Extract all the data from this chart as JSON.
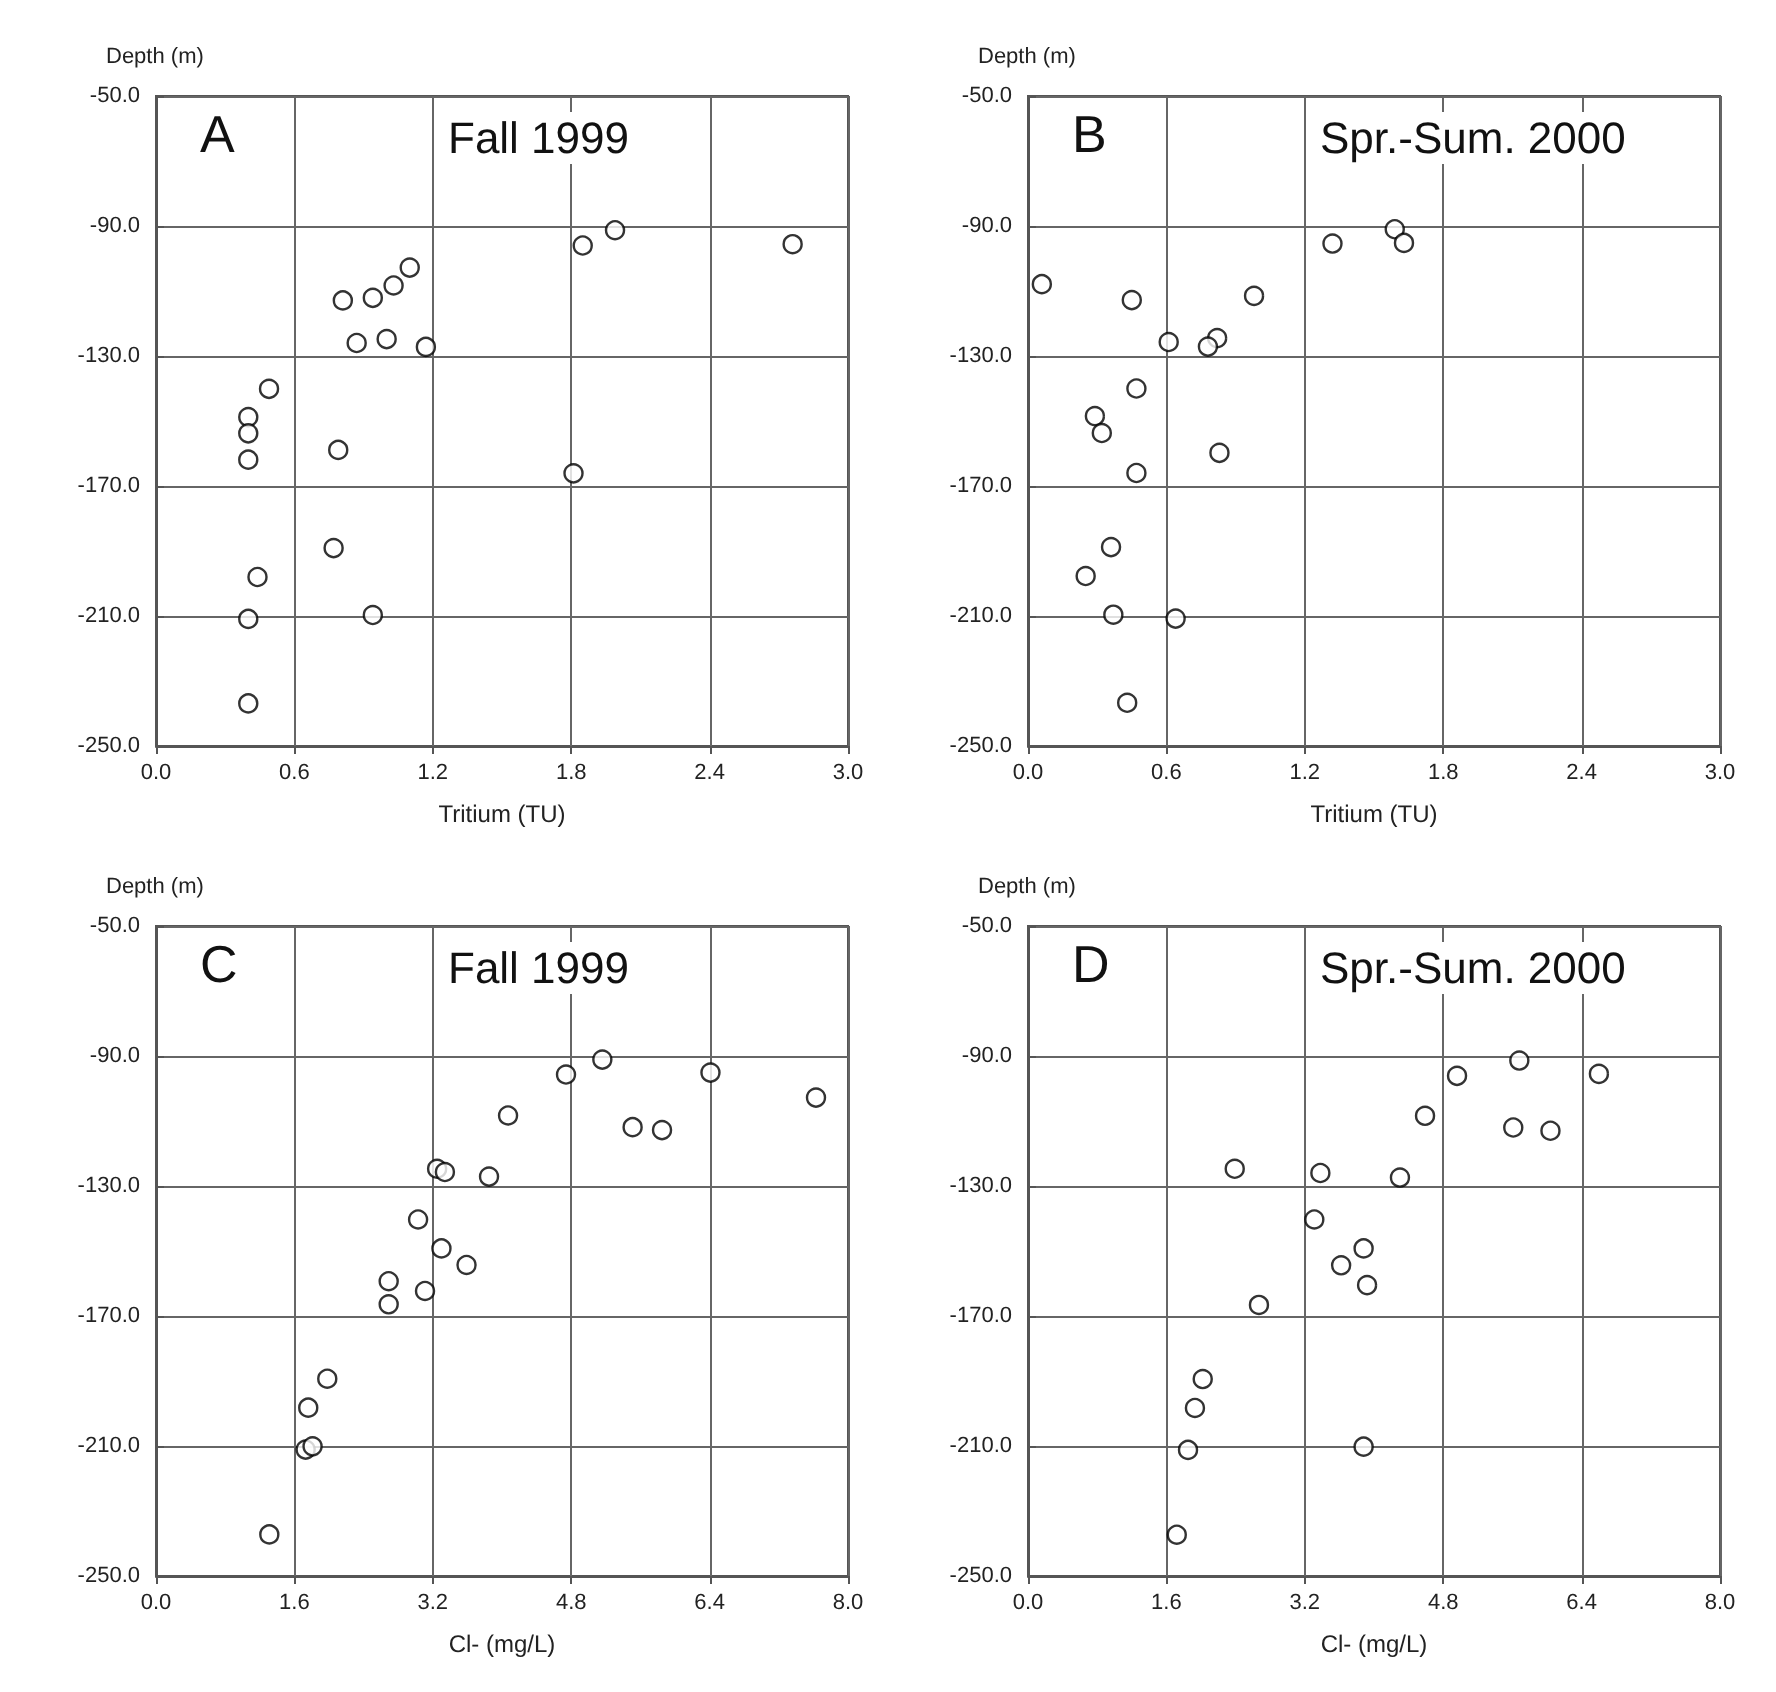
{
  "chart_data": [
    {
      "type": "scatter",
      "title": "Fall 1999",
      "annotations": [
        "A"
      ],
      "xlabel": "Tritium (TU)",
      "ylabel": "Depth (m)",
      "color": "#000000",
      "marker": "circle",
      "grid": true,
      "x": [
        1.85,
        1.99,
        2.76,
        1.1,
        1.03,
        0.94,
        0.81,
        0.87,
        1.0,
        1.17,
        0.49,
        0.4,
        0.4,
        0.4,
        0.79,
        1.81,
        0.77,
        0.44,
        0.4,
        0.94,
        0.4
      ],
      "values": [
        -96,
        -91.3,
        -95.6,
        -102.8,
        -108.3,
        -112.1,
        -112.9,
        -126,
        -124.8,
        -127.2,
        -140.1,
        -148.8,
        -153.8,
        -161.9,
        -158.9,
        -166.1,
        -189.1,
        -198,
        -210.9,
        -209.7,
        -236.9
      ],
      "xlim": [
        0,
        3
      ],
      "ylim": [
        -250,
        -50
      ],
      "xticks": [
        {
          "value": 0,
          "label": "0.0"
        },
        {
          "value": 0.6,
          "label": "0.6"
        },
        {
          "value": 1.2,
          "label": "1.2"
        },
        {
          "value": 1.8,
          "label": "1.8"
        },
        {
          "value": 2.4,
          "label": "2.4"
        },
        {
          "value": 3,
          "label": "3.0"
        }
      ],
      "yticks": [
        {
          "value": -250,
          "label": "-250.0"
        },
        {
          "value": -210,
          "label": "-210.0"
        },
        {
          "value": -170,
          "label": "-170.0"
        },
        {
          "value": -130,
          "label": "-130.0"
        },
        {
          "value": -90,
          "label": "-90.0"
        },
        {
          "value": -50,
          "label": "-50.0"
        }
      ]
    },
    {
      "type": "scatter",
      "title": "Spr.-Sum. 2000",
      "annotations": [
        "B"
      ],
      "xlabel": "Tritium (TU)",
      "ylabel": "Depth (m)",
      "color": "#000000",
      "marker": "circle",
      "grid": true,
      "x": [
        1.59,
        1.63,
        1.32,
        0.06,
        0.45,
        0.98,
        0.61,
        0.82,
        0.78,
        0.47,
        0.29,
        0.32,
        0.83,
        0.47,
        0.36,
        0.25,
        0.37,
        0.64,
        0.43
      ],
      "values": [
        -91,
        -95.2,
        -95.4,
        -107.9,
        -112.8,
        -111.5,
        -125.7,
        -124.5,
        -127.1,
        -140,
        -148.5,
        -153.7,
        -159.8,
        -166,
        -188.8,
        -197.7,
        -209.6,
        -210.8,
        -236.7
      ],
      "xlim": [
        0,
        3
      ],
      "ylim": [
        -250,
        -50
      ],
      "xticks": [
        {
          "value": 0,
          "label": "0.0"
        },
        {
          "value": 0.6,
          "label": "0.6"
        },
        {
          "value": 1.2,
          "label": "1.2"
        },
        {
          "value": 1.8,
          "label": "1.8"
        },
        {
          "value": 2.4,
          "label": "2.4"
        },
        {
          "value": 3,
          "label": "3.0"
        }
      ],
      "yticks": [
        {
          "value": -250,
          "label": "-250.0"
        },
        {
          "value": -210,
          "label": "-210.0"
        },
        {
          "value": -170,
          "label": "-170.0"
        },
        {
          "value": -130,
          "label": "-130.0"
        },
        {
          "value": -90,
          "label": "-90.0"
        },
        {
          "value": -50,
          "label": "-50.0"
        }
      ]
    },
    {
      "type": "scatter",
      "title": "Fall 1999",
      "annotations": [
        "C"
      ],
      "xlabel": "Cl- (mg/L)",
      "ylabel": "Depth (m)",
      "color": "#000000",
      "marker": "circle",
      "grid": true,
      "x": [
        5.16,
        4.74,
        6.41,
        7.63,
        4.07,
        5.51,
        5.85,
        3.25,
        3.34,
        3.85,
        3.03,
        3.3,
        3.59,
        2.69,
        3.11,
        2.69,
        1.98,
        1.76,
        1.73,
        1.81,
        1.31
      ],
      "values": [
        -91.1,
        -95.7,
        -95.1,
        -102.8,
        -108.3,
        -111.9,
        -112.8,
        -124.7,
        -125.7,
        -127.1,
        -140.3,
        -149.2,
        -154.3,
        -159.3,
        -162.3,
        -166.4,
        -189.3,
        -198.2,
        -211.1,
        -210.1,
        -237.2
      ],
      "xlim": [
        0,
        8
      ],
      "ylim": [
        -250,
        -50
      ],
      "xticks": [
        {
          "value": 0,
          "label": "0.0"
        },
        {
          "value": 1.6,
          "label": "1.6"
        },
        {
          "value": 3.2,
          "label": "3.2"
        },
        {
          "value": 4.8,
          "label": "4.8"
        },
        {
          "value": 6.4,
          "label": "6.4"
        },
        {
          "value": 8,
          "label": "8.0"
        }
      ],
      "yticks": [
        {
          "value": -250,
          "label": "-250.0"
        },
        {
          "value": -210,
          "label": "-210.0"
        },
        {
          "value": -170,
          "label": "-170.0"
        },
        {
          "value": -130,
          "label": "-130.0"
        },
        {
          "value": -90,
          "label": "-90.0"
        },
        {
          "value": -50,
          "label": "-50.0"
        }
      ]
    },
    {
      "type": "scatter",
      "title": "Spr.-Sum. 2000",
      "annotations": [
        "D"
      ],
      "xlabel": "Cl- (mg/L)",
      "ylabel": "Depth (m)",
      "color": "#000000",
      "marker": "circle",
      "grid": true,
      "x": [
        5.68,
        4.96,
        6.6,
        4.59,
        5.61,
        6.04,
        2.39,
        3.38,
        4.3,
        3.31,
        3.88,
        3.62,
        3.92,
        2.67,
        2.02,
        1.93,
        1.85,
        3.88,
        1.72
      ],
      "values": [
        -91.4,
        -96.1,
        -95.5,
        -108.4,
        -112,
        -113,
        -124.7,
        -126,
        -127.4,
        -140.3,
        -149.2,
        -154.4,
        -160.5,
        -166.6,
        -189.4,
        -198.3,
        -211.2,
        -210.2,
        -237.3
      ],
      "xlim": [
        0,
        8
      ],
      "ylim": [
        -250,
        -50
      ],
      "xticks": [
        {
          "value": 0,
          "label": "0.0"
        },
        {
          "value": 1.6,
          "label": "1.6"
        },
        {
          "value": 3.2,
          "label": "3.2"
        },
        {
          "value": 4.8,
          "label": "4.8"
        },
        {
          "value": 6.4,
          "label": "6.4"
        },
        {
          "value": 8,
          "label": "8.0"
        }
      ],
      "yticks": [
        {
          "value": -250,
          "label": "-250.0"
        },
        {
          "value": -210,
          "label": "-210.0"
        },
        {
          "value": -170,
          "label": "-170.0"
        },
        {
          "value": -130,
          "label": "-130.0"
        },
        {
          "value": -90,
          "label": "-90.0"
        },
        {
          "value": -50,
          "label": "-50.0"
        }
      ]
    }
  ]
}
